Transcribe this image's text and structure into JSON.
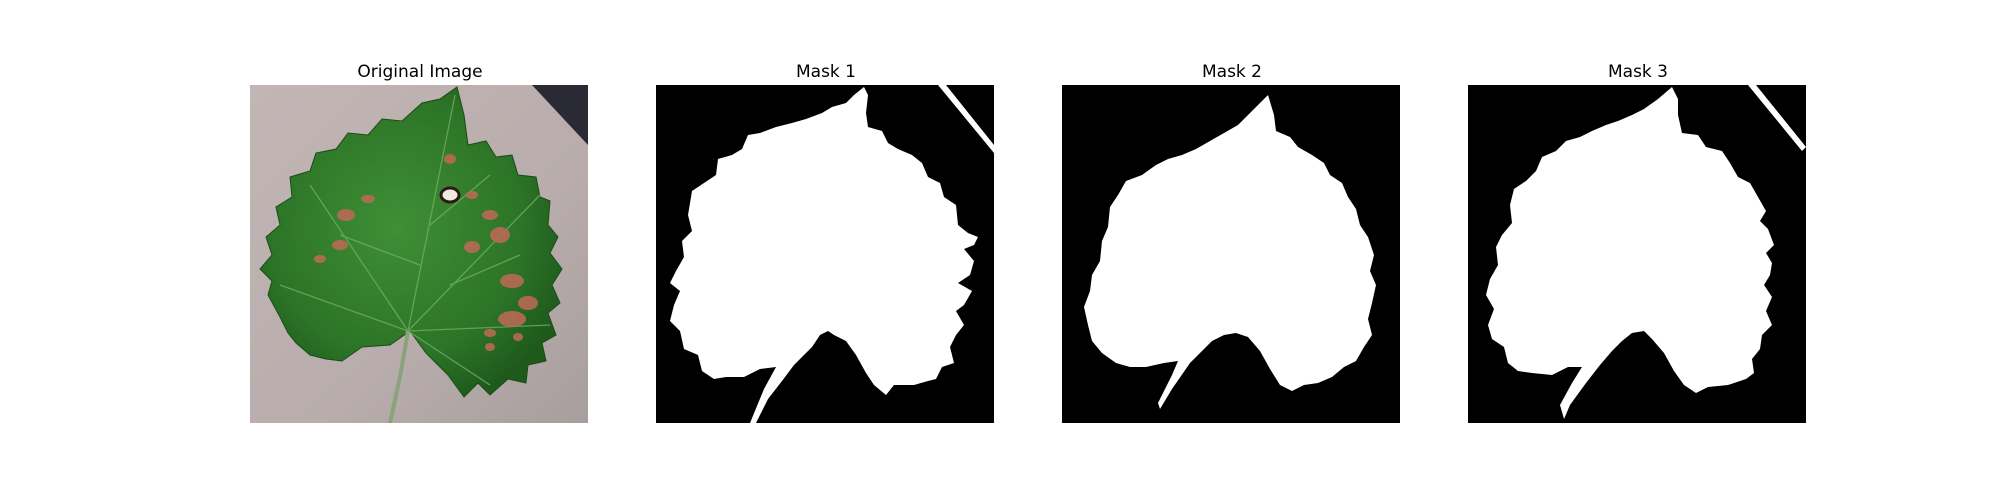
{
  "panels": [
    {
      "title": "Original Image",
      "kind": "photo"
    },
    {
      "title": "Mask 1",
      "kind": "mask"
    },
    {
      "title": "Mask 2",
      "kind": "mask"
    },
    {
      "title": "Mask 3",
      "kind": "mask"
    }
  ],
  "colors": {
    "background": "#ffffff",
    "mask_foreground": "#ffffff",
    "mask_background": "#000000",
    "leaf_green": "#2f7d2a",
    "leaf_dark": "#1e5a1c",
    "paper": "#b9aeae",
    "lesion": "#b86a55"
  }
}
